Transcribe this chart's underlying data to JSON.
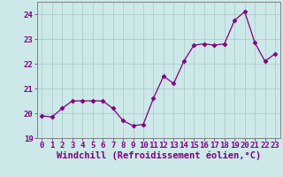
{
  "x": [
    0,
    1,
    2,
    3,
    4,
    5,
    6,
    7,
    8,
    9,
    10,
    11,
    12,
    13,
    14,
    15,
    16,
    17,
    18,
    19,
    20,
    21,
    22,
    23
  ],
  "y": [
    19.9,
    19.85,
    20.2,
    20.5,
    20.5,
    20.5,
    20.5,
    20.2,
    19.7,
    19.5,
    19.55,
    20.6,
    21.5,
    21.2,
    22.1,
    22.75,
    22.8,
    22.75,
    22.8,
    23.75,
    24.1,
    22.85,
    22.1,
    22.4
  ],
  "line_color": "#800080",
  "marker": "D",
  "marker_size": 2.5,
  "bg_color": "#cce8e8",
  "grid_color": "#aac8c8",
  "xlabel": "Windchill (Refroidissement éolien,°C)",
  "ylabel": "",
  "ylim": [
    19.0,
    24.5
  ],
  "yticks": [
    19,
    20,
    21,
    22,
    23,
    24
  ],
  "xlim": [
    -0.5,
    23.5
  ],
  "xticks": [
    0,
    1,
    2,
    3,
    4,
    5,
    6,
    7,
    8,
    9,
    10,
    11,
    12,
    13,
    14,
    15,
    16,
    17,
    18,
    19,
    20,
    21,
    22,
    23
  ],
  "tick_fontsize": 6.5,
  "xlabel_fontsize": 7.5,
  "tick_color": "#800080",
  "spine_color": "#808080"
}
